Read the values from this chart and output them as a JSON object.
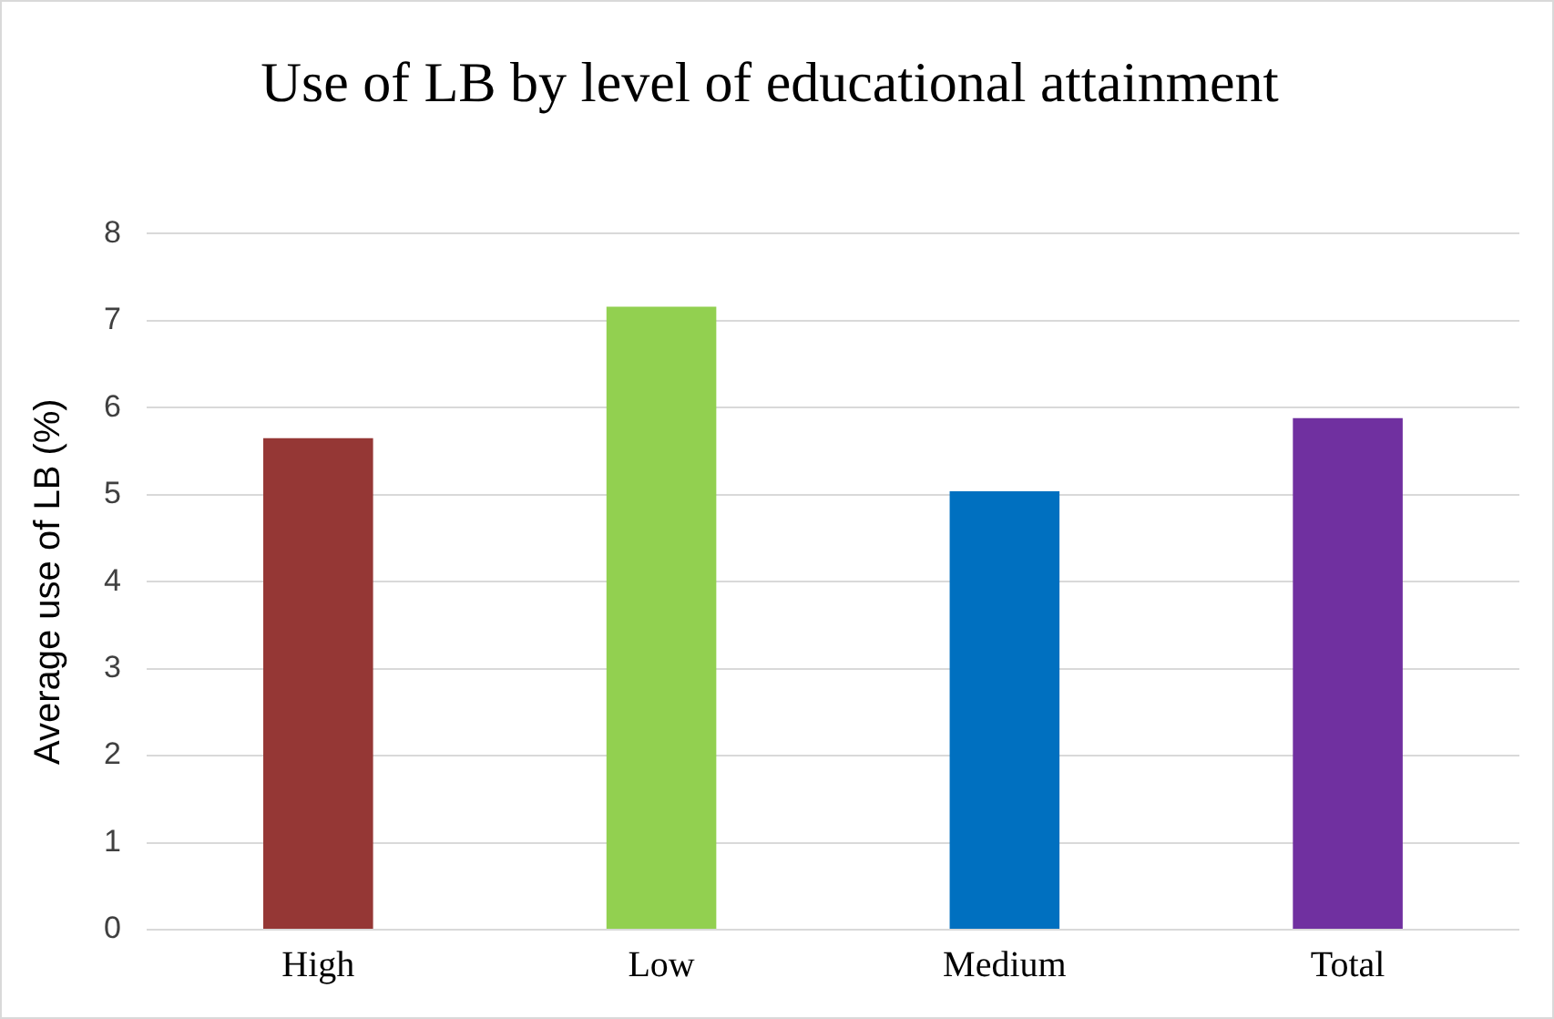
{
  "chart_data": {
    "type": "bar",
    "title": "Use of LB by level of educational attainment",
    "ylabel": "Average use of LB (%)",
    "categories": [
      "High",
      "Low",
      "Medium",
      "Total"
    ],
    "values": [
      5.65,
      7.16,
      5.04,
      5.88
    ],
    "colors": [
      "#953735",
      "#92d050",
      "#0070c0",
      "#7030a0"
    ],
    "ylim": [
      0,
      8
    ],
    "yticks": [
      0,
      1,
      2,
      3,
      4,
      5,
      6,
      7,
      8
    ],
    "grid": "y",
    "legend": false
  }
}
